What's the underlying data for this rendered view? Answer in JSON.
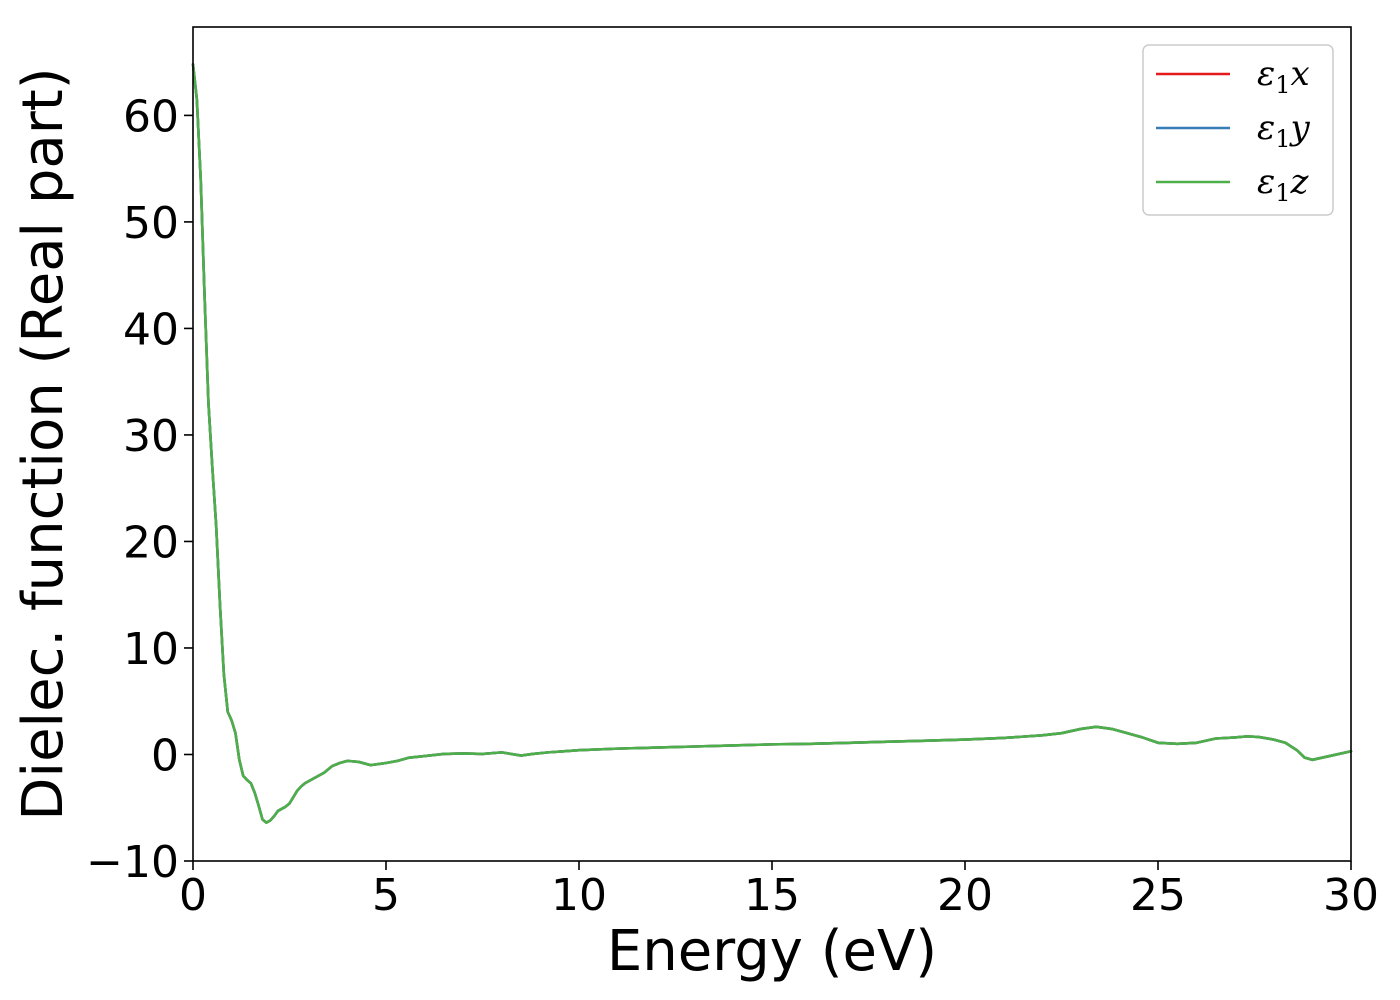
{
  "chart_data": {
    "type": "line",
    "xlabel": "Energy (eV)",
    "ylabel": "Dielec. function (Real part)",
    "xlim": [
      0,
      30
    ],
    "ylim": [
      -10,
      68.3
    ],
    "x_ticks": [
      0,
      5,
      10,
      15,
      20,
      25,
      30
    ],
    "x_tick_labels": [
      "0",
      "5",
      "10",
      "15",
      "20",
      "25",
      "30"
    ],
    "y_ticks": [
      -10,
      0,
      10,
      20,
      30,
      40,
      50,
      60
    ],
    "y_tick_labels": [
      "−10",
      "0",
      "10",
      "20",
      "30",
      "40",
      "50",
      "60"
    ],
    "grid": false,
    "legend_placement": "top-right",
    "x": [
      0,
      0.1,
      0.2,
      0.3,
      0.4,
      0.5,
      0.6,
      0.7,
      0.8,
      0.9,
      1.0,
      1.1,
      1.2,
      1.3,
      1.4,
      1.5,
      1.6,
      1.7,
      1.8,
      1.9,
      2.0,
      2.1,
      2.2,
      2.3,
      2.4,
      2.5,
      2.6,
      2.7,
      2.8,
      2.9,
      3.0,
      3.2,
      3.4,
      3.6,
      3.8,
      4.0,
      4.3,
      4.6,
      5.0,
      5.3,
      5.6,
      6.0,
      6.5,
      7.0,
      7.5,
      8.0,
      8.5,
      8.8,
      9.2,
      9.6,
      10.0,
      11.0,
      12.0,
      13.0,
      14.0,
      15.0,
      16.0,
      17.0,
      18.0,
      19.0,
      20.0,
      21.0,
      22.0,
      22.5,
      23.0,
      23.4,
      23.8,
      24.2,
      24.6,
      25.0,
      25.5,
      26.0,
      26.5,
      27.0,
      27.3,
      27.6,
      28.0,
      28.3,
      28.6,
      28.8,
      29.0,
      29.5,
      30.0
    ],
    "series": [
      {
        "name": "ε₁x",
        "color": "#e41a1c",
        "values": [
          64.8,
          61.5,
          54.0,
          43.0,
          33.0,
          27.0,
          21.5,
          14.0,
          7.5,
          4.0,
          3.2,
          2.0,
          -0.5,
          -2.0,
          -2.4,
          -2.7,
          -3.6,
          -4.8,
          -6.1,
          -6.4,
          -6.2,
          -5.8,
          -5.3,
          -5.1,
          -4.9,
          -4.6,
          -4.0,
          -3.4,
          -3.0,
          -2.7,
          -2.5,
          -2.1,
          -1.7,
          -1.1,
          -0.8,
          -0.6,
          -0.7,
          -1.0,
          -0.8,
          -0.6,
          -0.3,
          -0.15,
          0.05,
          0.1,
          0.05,
          0.2,
          -0.1,
          0.05,
          0.2,
          0.3,
          0.4,
          0.55,
          0.65,
          0.75,
          0.85,
          0.95,
          1.0,
          1.1,
          1.2,
          1.3,
          1.4,
          1.55,
          1.8,
          2.0,
          2.4,
          2.6,
          2.4,
          2.0,
          1.6,
          1.1,
          1.0,
          1.1,
          1.5,
          1.6,
          1.7,
          1.65,
          1.4,
          1.1,
          0.4,
          -0.3,
          -0.5,
          -0.1,
          0.3
        ]
      },
      {
        "name": "ε₁y",
        "color": "#377eb8",
        "values": [
          64.8,
          61.5,
          54.0,
          43.0,
          33.0,
          27.0,
          21.5,
          14.0,
          7.5,
          4.0,
          3.2,
          2.0,
          -0.5,
          -2.0,
          -2.4,
          -2.7,
          -3.6,
          -4.8,
          -6.1,
          -6.4,
          -6.2,
          -5.8,
          -5.3,
          -5.1,
          -4.9,
          -4.6,
          -4.0,
          -3.4,
          -3.0,
          -2.7,
          -2.5,
          -2.1,
          -1.7,
          -1.1,
          -0.8,
          -0.6,
          -0.7,
          -1.0,
          -0.8,
          -0.6,
          -0.3,
          -0.15,
          0.05,
          0.1,
          0.05,
          0.2,
          -0.1,
          0.05,
          0.2,
          0.3,
          0.4,
          0.55,
          0.65,
          0.75,
          0.85,
          0.95,
          1.0,
          1.1,
          1.2,
          1.3,
          1.4,
          1.55,
          1.8,
          2.0,
          2.4,
          2.6,
          2.4,
          2.0,
          1.6,
          1.1,
          1.0,
          1.1,
          1.5,
          1.6,
          1.7,
          1.65,
          1.4,
          1.1,
          0.4,
          -0.3,
          -0.5,
          -0.1,
          0.3
        ]
      },
      {
        "name": "ε₁z",
        "color": "#4daf4a",
        "values": [
          64.8,
          61.5,
          54.0,
          43.0,
          33.0,
          27.0,
          21.5,
          14.0,
          7.5,
          4.0,
          3.2,
          2.0,
          -0.5,
          -2.0,
          -2.4,
          -2.7,
          -3.6,
          -4.8,
          -6.1,
          -6.4,
          -6.2,
          -5.8,
          -5.3,
          -5.1,
          -4.9,
          -4.6,
          -4.0,
          -3.4,
          -3.0,
          -2.7,
          -2.5,
          -2.1,
          -1.7,
          -1.1,
          -0.8,
          -0.6,
          -0.7,
          -1.0,
          -0.8,
          -0.6,
          -0.3,
          -0.15,
          0.05,
          0.1,
          0.05,
          0.2,
          -0.1,
          0.05,
          0.2,
          0.3,
          0.4,
          0.55,
          0.65,
          0.75,
          0.85,
          0.95,
          1.0,
          1.1,
          1.2,
          1.3,
          1.4,
          1.55,
          1.8,
          2.0,
          2.4,
          2.6,
          2.4,
          2.0,
          1.6,
          1.1,
          1.0,
          1.1,
          1.5,
          1.6,
          1.7,
          1.65,
          1.4,
          1.1,
          0.4,
          -0.3,
          -0.5,
          -0.1,
          0.3
        ]
      }
    ],
    "legend_entries": [
      {
        "symbol": "ε",
        "subscript": "1",
        "axis": "x"
      },
      {
        "symbol": "ε",
        "subscript": "1",
        "axis": "y"
      },
      {
        "symbol": "ε",
        "subscript": "1",
        "axis": "z"
      }
    ]
  }
}
